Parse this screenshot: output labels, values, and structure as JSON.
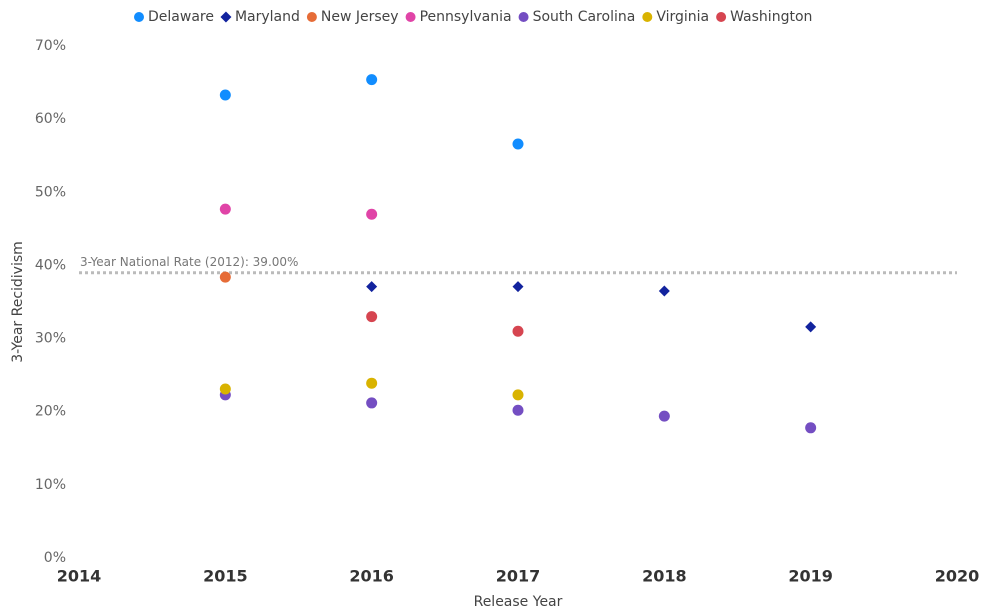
{
  "chart_data": {
    "type": "scatter",
    "x": [
      2015,
      2016,
      2017,
      2018,
      2019
    ],
    "series": [
      {
        "name": "Delaware",
        "color": "#118DFF",
        "marker": "circle",
        "values": [
          63.3,
          65.4,
          56.6,
          null,
          null
        ]
      },
      {
        "name": "Maryland",
        "color": "#12239E",
        "marker": "diamond",
        "values": [
          null,
          37.1,
          37.1,
          36.5,
          31.6
        ]
      },
      {
        "name": "New Jersey",
        "color": "#E66C37",
        "marker": "circle",
        "values": [
          38.4,
          null,
          null,
          null,
          null
        ]
      },
      {
        "name": "Pennsylvania",
        "color": "#E044A7",
        "marker": "circle",
        "values": [
          47.7,
          47.0,
          null,
          null,
          null
        ]
      },
      {
        "name": "South Carolina",
        "color": "#744EC2",
        "marker": "circle",
        "values": [
          22.3,
          21.2,
          20.2,
          19.4,
          17.8
        ]
      },
      {
        "name": "Virginia",
        "color": "#D9B300",
        "marker": "circle",
        "values": [
          23.1,
          23.9,
          22.3,
          null,
          null
        ]
      },
      {
        "name": "Washington",
        "color": "#D64550",
        "marker": "circle",
        "values": [
          null,
          33.0,
          31.0,
          null,
          null
        ]
      }
    ],
    "xlabel": "Release Year",
    "ylabel": "3-Year Recidivism",
    "xlim": [
      2014,
      2020
    ],
    "xticks": [
      2014,
      2015,
      2016,
      2017,
      2018,
      2019,
      2020
    ],
    "ylim": [
      0,
      70
    ],
    "yticks": [
      {
        "value": 0,
        "label": "0%"
      },
      {
        "value": 10,
        "label": "10%"
      },
      {
        "value": 20,
        "label": "20%"
      },
      {
        "value": 30,
        "label": "30%"
      },
      {
        "value": 40,
        "label": "40%"
      },
      {
        "value": 50,
        "label": "50%"
      },
      {
        "value": 60,
        "label": "60%"
      },
      {
        "value": 70,
        "label": "70%"
      }
    ],
    "reference_line": {
      "value": 39,
      "label": "3-Year National Rate (2012): 39.00%",
      "color": "#bbbbbb"
    },
    "legend": "top",
    "grid": false
  }
}
